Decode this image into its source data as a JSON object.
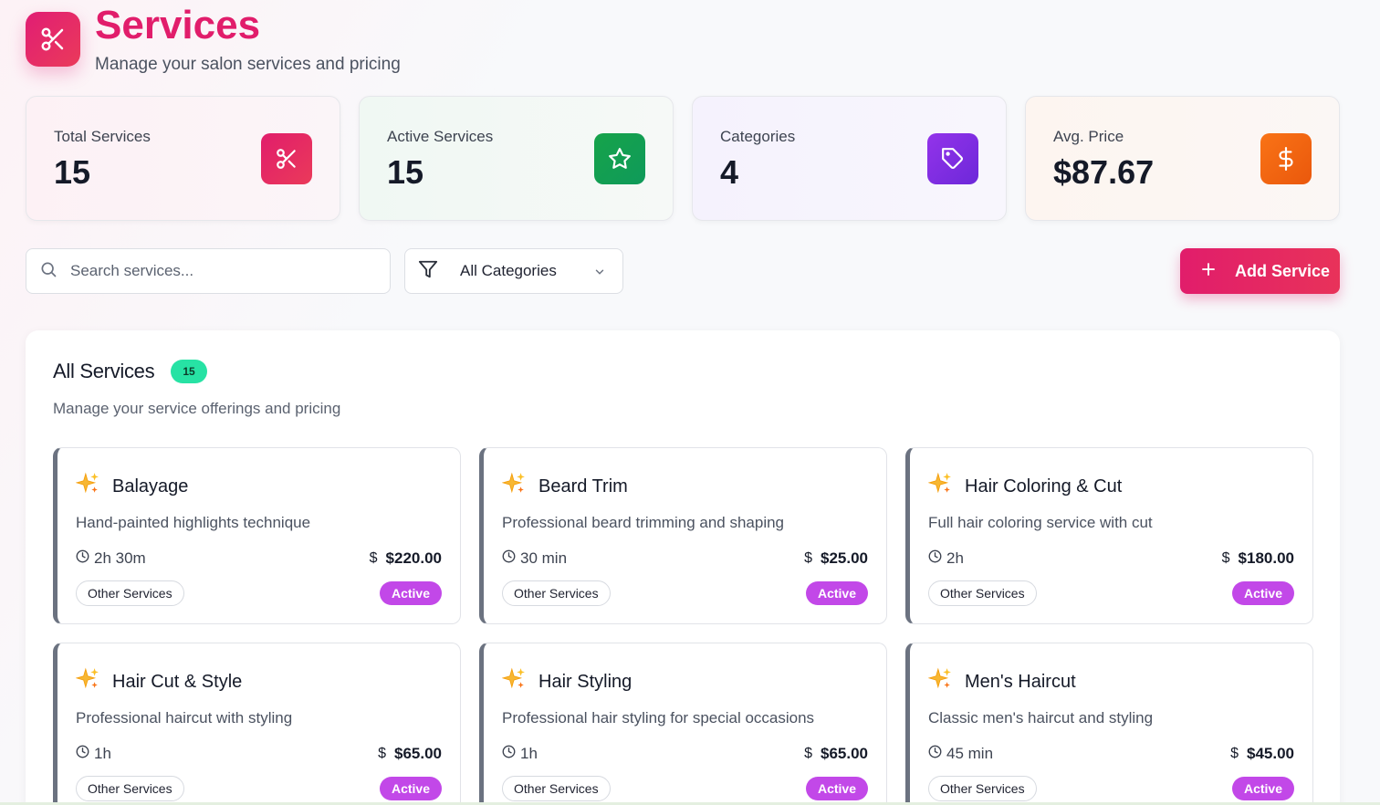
{
  "header": {
    "title": "Services",
    "subtitle": "Manage your salon services and pricing"
  },
  "stats": [
    {
      "label": "Total Services",
      "value": "15",
      "icon": "scissors-icon",
      "color": "#e11d6b"
    },
    {
      "label": "Active Services",
      "value": "15",
      "icon": "star-icon",
      "color": "#16a34a"
    },
    {
      "label": "Categories",
      "value": "4",
      "icon": "tag-icon",
      "color": "#7c3aed"
    },
    {
      "label": "Avg. Price",
      "value": "$87.67",
      "icon": "dollar-icon",
      "color": "#ea580c"
    }
  ],
  "toolbar": {
    "search_placeholder": "Search services...",
    "filter_value": "All Categories",
    "add_label": "Add Service"
  },
  "panel": {
    "title": "All Services",
    "count": "15",
    "subtitle": "Manage your service offerings and pricing"
  },
  "services": [
    {
      "name": "Balayage",
      "description": "Hand-painted highlights technique",
      "duration": "2h 30m",
      "price": "$220.00",
      "category": "Other Services",
      "status": "Active"
    },
    {
      "name": "Beard Trim",
      "description": "Professional beard trimming and shaping",
      "duration": "30 min",
      "price": "$25.00",
      "category": "Other Services",
      "status": "Active"
    },
    {
      "name": "Hair Coloring & Cut",
      "description": "Full hair coloring service with cut",
      "duration": "2h",
      "price": "$180.00",
      "category": "Other Services",
      "status": "Active"
    },
    {
      "name": "Hair Cut & Style",
      "description": "Professional haircut with styling",
      "duration": "1h",
      "price": "$65.00",
      "category": "Other Services",
      "status": "Active"
    },
    {
      "name": "Hair Styling",
      "description": "Professional hair styling for special occasions",
      "duration": "1h",
      "price": "$65.00",
      "category": "Other Services",
      "status": "Active"
    },
    {
      "name": "Men's Haircut",
      "description": "Classic men's haircut and styling",
      "duration": "45 min",
      "price": "$45.00",
      "category": "Other Services",
      "status": "Active"
    }
  ]
}
